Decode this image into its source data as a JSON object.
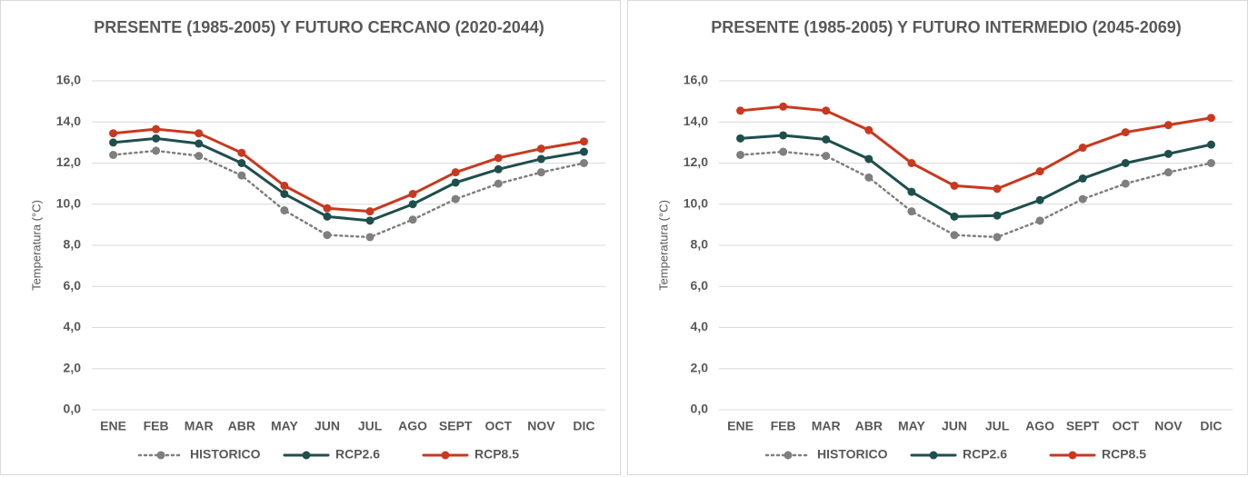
{
  "chart_data": [
    {
      "type": "line",
      "title": "PRESENTE (1985-2005) Y FUTURO CERCANO (2020-2044)",
      "y_label": "Temperatura (°C)",
      "categories": [
        "ENE",
        "FEB",
        "MAR",
        "ABR",
        "MAY",
        "JUN",
        "JUL",
        "AGO",
        "SEPT",
        "OCT",
        "NOV",
        "DIC"
      ],
      "series": [
        {
          "name": "HISTORICO",
          "color": "#7f7f7f",
          "dashed": true,
          "values": [
            12.4,
            12.6,
            12.35,
            11.4,
            9.7,
            8.5,
            8.4,
            9.25,
            10.25,
            11.0,
            11.55,
            12.0
          ]
        },
        {
          "name": "RCP2.6",
          "color": "#1e4f4d",
          "dashed": false,
          "values": [
            13.0,
            13.2,
            12.95,
            12.0,
            10.5,
            9.4,
            9.2,
            10.0,
            11.05,
            11.7,
            12.2,
            12.55
          ]
        },
        {
          "name": "RCP8.5",
          "color": "#c8391f",
          "dashed": false,
          "values": [
            13.45,
            13.65,
            13.45,
            12.5,
            10.9,
            9.8,
            9.65,
            10.5,
            11.55,
            12.25,
            12.7,
            13.05
          ]
        }
      ],
      "ylim": [
        0,
        16
      ],
      "yticks": [
        {
          "value": 0,
          "label": "0,0"
        },
        {
          "value": 2,
          "label": "2,0"
        },
        {
          "value": 4,
          "label": "4,0"
        },
        {
          "value": 6,
          "label": "6,0"
        },
        {
          "value": 8,
          "label": "8,0"
        },
        {
          "value": 10,
          "label": "10,0"
        },
        {
          "value": 12,
          "label": "12,0"
        },
        {
          "value": 14,
          "label": "14,0"
        },
        {
          "value": 16,
          "label": "16,0"
        }
      ],
      "grid": true,
      "legend": "bottom"
    },
    {
      "type": "line",
      "title": "PRESENTE (1985-2005) Y FUTURO INTERMEDIO (2045-2069)",
      "y_label": "Temperatura (°C)",
      "categories": [
        "ENE",
        "FEB",
        "MAR",
        "ABR",
        "MAY",
        "JUN",
        "JUL",
        "AGO",
        "SEPT",
        "OCT",
        "NOV",
        "DIC"
      ],
      "series": [
        {
          "name": "HISTORICO",
          "color": "#7f7f7f",
          "dashed": true,
          "values": [
            12.4,
            12.55,
            12.35,
            11.3,
            9.65,
            8.5,
            8.4,
            9.2,
            10.25,
            11.0,
            11.55,
            12.0
          ]
        },
        {
          "name": "RCP2.6",
          "color": "#1e4f4d",
          "dashed": false,
          "values": [
            13.2,
            13.35,
            13.15,
            12.2,
            10.6,
            9.4,
            9.45,
            10.2,
            11.25,
            12.0,
            12.45,
            12.9
          ]
        },
        {
          "name": "RCP8.5",
          "color": "#c8391f",
          "dashed": false,
          "values": [
            14.55,
            14.75,
            14.55,
            13.6,
            12.0,
            10.9,
            10.75,
            11.6,
            12.75,
            13.5,
            13.85,
            14.2
          ]
        }
      ],
      "ylim": [
        0,
        16
      ],
      "yticks": [
        {
          "value": 0,
          "label": "0,0"
        },
        {
          "value": 2,
          "label": "2,0"
        },
        {
          "value": 4,
          "label": "4,0"
        },
        {
          "value": 6,
          "label": "6,0"
        },
        {
          "value": 8,
          "label": "8,0"
        },
        {
          "value": 10,
          "label": "10,0"
        },
        {
          "value": 12,
          "label": "12,0"
        },
        {
          "value": 14,
          "label": "14,0"
        },
        {
          "value": 16,
          "label": "16,0"
        }
      ],
      "grid": true,
      "legend": "bottom"
    }
  ]
}
